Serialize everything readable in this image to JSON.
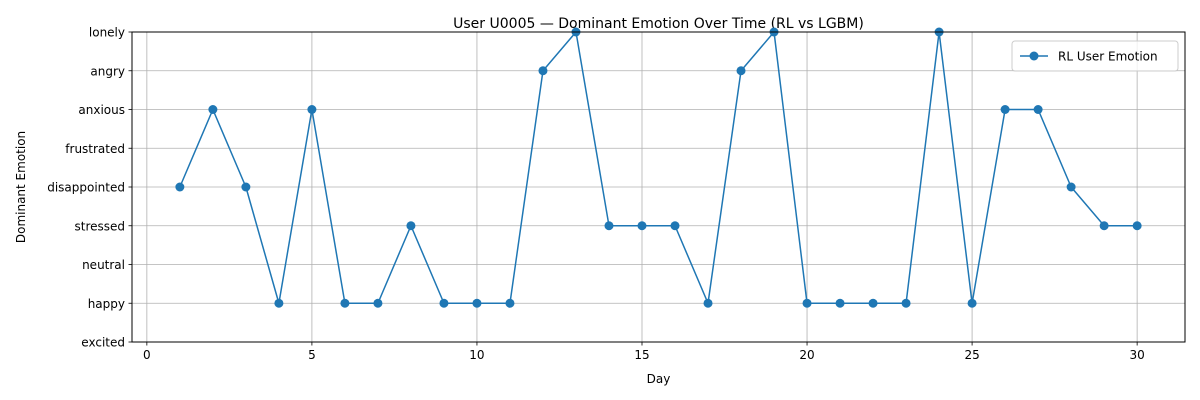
{
  "chart_data": {
    "type": "line",
    "title": "User U0005 — Dominant Emotion Over Time (RL vs LGBM)",
    "xlabel": "Day",
    "ylabel": "Dominant Emotion",
    "xlim": [
      -0.45,
      31.45
    ],
    "x_ticks": [
      0,
      5,
      10,
      15,
      20,
      25,
      30
    ],
    "y_categories": [
      "excited",
      "happy",
      "neutral",
      "stressed",
      "disappointed",
      "frustrated",
      "anxious",
      "angry",
      "lonely"
    ],
    "grid": true,
    "legend_position": "top-right",
    "series": [
      {
        "name": "RL User Emotion",
        "color": "#1f77b4",
        "marker": "circle",
        "x": [
          1,
          2,
          3,
          4,
          5,
          6,
          7,
          8,
          9,
          10,
          11,
          12,
          13,
          14,
          15,
          16,
          17,
          18,
          19,
          20,
          21,
          22,
          23,
          24,
          25,
          26,
          27,
          28,
          29,
          30
        ],
        "values": [
          "disappointed",
          "anxious",
          "disappointed",
          "happy",
          "anxious",
          "happy",
          "happy",
          "stressed",
          "happy",
          "happy",
          "happy",
          "angry",
          "lonely",
          "stressed",
          "stressed",
          "stressed",
          "happy",
          "angry",
          "lonely",
          "happy",
          "happy",
          "happy",
          "happy",
          "lonely",
          "happy",
          "anxious",
          "anxious",
          "disappointed",
          "stressed",
          "stressed"
        ]
      }
    ]
  }
}
